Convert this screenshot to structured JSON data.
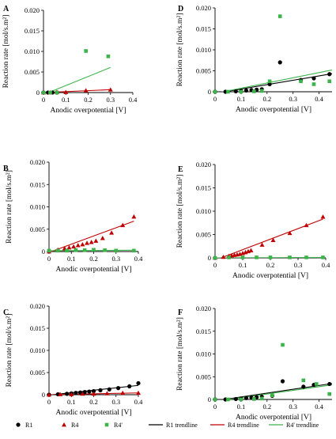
{
  "legend": {
    "items": [
      {
        "label": "R1",
        "marker": "circle",
        "color": "#000000"
      },
      {
        "label": "R4",
        "marker": "triangle",
        "color": "#c00000"
      },
      {
        "label": "R4'",
        "marker": "square",
        "color": "#3cb44b"
      },
      {
        "label": "R1 trendline",
        "marker": "line",
        "color": "#000000"
      },
      {
        "label": "R4 trendline",
        "marker": "line",
        "color": "#c00000"
      },
      {
        "label": "R4' trendline",
        "marker": "line",
        "color": "#3cb44b"
      }
    ]
  },
  "colors": {
    "R1": "#000000",
    "R4": "#c00000",
    "R4p": "#3cb44b"
  },
  "chart_data": [
    {
      "panel": "A",
      "type": "scatter",
      "xlabel": "Anodic overpotential [V]",
      "ylabel": "Reaction rate [mol/s.m²]",
      "xlim": [
        0,
        0.4
      ],
      "ylim": [
        0,
        0.02
      ],
      "xticks": [
        "0",
        "0.1",
        "0.2",
        "0.3",
        "0.4"
      ],
      "yticks": [
        "0",
        "0.005",
        "0.010",
        "0.015",
        "0.020"
      ],
      "series": [
        {
          "key": "R1",
          "points": [
            [
              0.0,
              0.0
            ],
            [
              0.02,
              0.0
            ],
            [
              0.04,
              0.0
            ],
            [
              0.06,
              0.0
            ]
          ]
        },
        {
          "key": "R4",
          "points": [
            [
              0.0,
              0.0
            ],
            [
              0.03,
              0.0
            ],
            [
              0.06,
              0.0001
            ],
            [
              0.1,
              0.0001
            ],
            [
              0.19,
              0.0005
            ],
            [
              0.3,
              0.0007
            ]
          ]
        },
        {
          "key": "R4p",
          "points": [
            [
              0.0,
              0.0
            ],
            [
              0.03,
              0.0
            ],
            [
              0.06,
              0.0
            ],
            [
              0.19,
              0.0101
            ],
            [
              0.29,
              0.0088
            ]
          ]
        }
      ],
      "trendlines": [
        {
          "key": "R4",
          "x": [
            0.0,
            0.3
          ],
          "y": [
            0.0,
            0.0007
          ]
        },
        {
          "key": "R4p",
          "x": [
            0.0,
            0.3
          ],
          "y": [
            -0.0005,
            0.0061
          ]
        }
      ]
    },
    {
      "panel": "B",
      "type": "scatter",
      "xlabel": "Anodic overpotential [V]",
      "ylabel": "Reaction rate [mol/s.m²]",
      "xlim": [
        0,
        0.4
      ],
      "ylim": [
        0,
        0.02
      ],
      "xticks": [
        "0",
        "0.1",
        "0.2",
        "0.3",
        "0.4"
      ],
      "yticks": [
        "0",
        "0.005",
        "0.010",
        "0.015",
        "0.020"
      ],
      "series": [
        {
          "key": "R4",
          "points": [
            [
              0.0,
              0.0
            ],
            [
              0.04,
              0.0004
            ],
            [
              0.07,
              0.0007
            ],
            [
              0.09,
              0.0009
            ],
            [
              0.11,
              0.0011
            ],
            [
              0.13,
              0.0014
            ],
            [
              0.15,
              0.0016
            ],
            [
              0.17,
              0.0019
            ],
            [
              0.19,
              0.0021
            ],
            [
              0.21,
              0.0024
            ],
            [
              0.24,
              0.003
            ],
            [
              0.28,
              0.0042
            ],
            [
              0.33,
              0.0059
            ],
            [
              0.38,
              0.0078
            ]
          ]
        },
        {
          "key": "R4p",
          "points": [
            [
              0.0,
              0.0002
            ],
            [
              0.04,
              0.0002
            ],
            [
              0.08,
              0.0002
            ],
            [
              0.12,
              0.0003
            ],
            [
              0.16,
              0.0003
            ],
            [
              0.2,
              0.0004
            ],
            [
              0.25,
              0.0003
            ],
            [
              0.3,
              0.0002
            ],
            [
              0.38,
              0.0002
            ]
          ]
        }
      ],
      "trendlines": [
        {
          "key": "R4",
          "x": [
            0.0,
            0.38
          ],
          "y": [
            -0.0002,
            0.0068
          ]
        },
        {
          "key": "R4p",
          "x": [
            0.0,
            0.38
          ],
          "y": [
            0.0002,
            0.0003
          ]
        }
      ]
    },
    {
      "panel": "C",
      "type": "scatter",
      "xlabel": "Anodic overpotential [V]",
      "ylabel": "Reaction rate [mol/s.m²]",
      "xlim": [
        0,
        0.4
      ],
      "ylim": [
        0,
        0.02
      ],
      "xticks": [
        "0",
        "0.1",
        "0.2",
        "0.3",
        "0.4"
      ],
      "yticks": [
        "0",
        "0.005",
        "0.010",
        "0.015",
        "0.020"
      ],
      "series": [
        {
          "key": "R1",
          "points": [
            [
              0.0,
              0.0
            ],
            [
              0.04,
              0.0001
            ],
            [
              0.08,
              0.0002
            ],
            [
              0.1,
              0.0003
            ],
            [
              0.12,
              0.0004
            ],
            [
              0.14,
              0.0005
            ],
            [
              0.16,
              0.0006
            ],
            [
              0.18,
              0.0007
            ],
            [
              0.2,
              0.0008
            ],
            [
              0.23,
              0.001
            ],
            [
              0.27,
              0.0012
            ],
            [
              0.31,
              0.0015
            ],
            [
              0.36,
              0.0019
            ],
            [
              0.4,
              0.0026
            ]
          ]
        },
        {
          "key": "R4",
          "points": [
            [
              0.0,
              0.0
            ],
            [
              0.05,
              0.0001
            ],
            [
              0.1,
              0.0001
            ],
            [
              0.15,
              0.0002
            ],
            [
              0.2,
              0.0002
            ],
            [
              0.26,
              0.0003
            ],
            [
              0.33,
              0.0004
            ],
            [
              0.4,
              0.0004
            ]
          ]
        }
      ],
      "trendlines": [
        {
          "key": "R1",
          "x": [
            0.0,
            0.4
          ],
          "y": [
            -0.0001,
            0.0021
          ]
        },
        {
          "key": "R4",
          "x": [
            0.0,
            0.4
          ],
          "y": [
            0.0,
            0.0004
          ]
        }
      ]
    },
    {
      "panel": "D",
      "type": "scatter",
      "xlabel": "Anodic overpotential [V]",
      "ylabel": "Reaction rate [mol/s.m²]",
      "xlim": [
        0,
        0.45
      ],
      "ylim": [
        0,
        0.02
      ],
      "xticks": [
        "0",
        "0.1",
        "0.2",
        "0.3",
        "0.4"
      ],
      "yticks": [
        "0",
        "0.005",
        "0.010",
        "0.015",
        "0.020"
      ],
      "series": [
        {
          "key": "R1",
          "points": [
            [
              0.0,
              0.0
            ],
            [
              0.04,
              0.0
            ],
            [
              0.08,
              0.0001
            ],
            [
              0.1,
              0.0002
            ],
            [
              0.12,
              0.0003
            ],
            [
              0.14,
              0.0004
            ],
            [
              0.16,
              0.0005
            ],
            [
              0.18,
              0.0006
            ],
            [
              0.21,
              0.0018
            ],
            [
              0.25,
              0.007
            ],
            [
              0.33,
              0.0028
            ],
            [
              0.38,
              0.0032
            ],
            [
              0.44,
              0.0042
            ]
          ]
        },
        {
          "key": "R4p",
          "points": [
            [
              0.0,
              0.0
            ],
            [
              0.05,
              0.0
            ],
            [
              0.1,
              0.0
            ],
            [
              0.15,
              0.0001
            ],
            [
              0.18,
              0.0002
            ],
            [
              0.21,
              0.0025
            ],
            [
              0.25,
              0.018
            ],
            [
              0.33,
              0.0025
            ],
            [
              0.38,
              0.0018
            ],
            [
              0.44,
              0.0025
            ]
          ]
        }
      ],
      "trendlines": [
        {
          "key": "R1",
          "x": [
            0.0,
            0.45
          ],
          "y": [
            -0.0004,
            0.0043
          ]
        },
        {
          "key": "R4p",
          "x": [
            0.0,
            0.45
          ],
          "y": [
            -0.0004,
            0.0052
          ]
        }
      ]
    },
    {
      "panel": "E",
      "type": "scatter",
      "xlabel": "Anodic overpotential [V]",
      "ylabel": "Reaction rate [mol/s.m²]",
      "xlim": [
        0,
        0.4
      ],
      "ylim": [
        0,
        0.02
      ],
      "xticks": [
        "0",
        "0.1",
        "0.2",
        "0.3",
        "0.4"
      ],
      "yticks": [
        "0",
        "0.005",
        "0.010",
        "0.015",
        "0.020"
      ],
      "series": [
        {
          "key": "R4",
          "points": [
            [
              0.0,
              0.0
            ],
            [
              0.03,
              0.0002
            ],
            [
              0.05,
              0.0004
            ],
            [
              0.06,
              0.0005
            ],
            [
              0.07,
              0.0006
            ],
            [
              0.08,
              0.0007
            ],
            [
              0.09,
              0.0008
            ],
            [
              0.1,
              0.001
            ],
            [
              0.11,
              0.0012
            ],
            [
              0.12,
              0.0014
            ],
            [
              0.13,
              0.0016
            ],
            [
              0.17,
              0.0028
            ],
            [
              0.21,
              0.0038
            ],
            [
              0.27,
              0.0053
            ],
            [
              0.33,
              0.007
            ],
            [
              0.39,
              0.0088
            ]
          ]
        },
        {
          "key": "R4p",
          "points": [
            [
              0.0,
              0.0
            ],
            [
              0.05,
              0.0001
            ],
            [
              0.1,
              0.0001
            ],
            [
              0.15,
              0.0001
            ],
            [
              0.2,
              0.0001
            ],
            [
              0.27,
              0.0001
            ],
            [
              0.33,
              0.0001
            ],
            [
              0.39,
              0.0001
            ]
          ]
        }
      ],
      "trendlines": [
        {
          "key": "R4",
          "x": [
            0.0,
            0.39
          ],
          "y": [
            -0.0005,
            0.0083
          ]
        },
        {
          "key": "R4p",
          "x": [
            0.0,
            0.39
          ],
          "y": [
            0.0,
            0.0001
          ]
        }
      ]
    },
    {
      "panel": "F",
      "type": "scatter",
      "xlabel": "Anodic overpotential [V]",
      "ylabel": "Reaction rate [mol/s.m²]",
      "xlim": [
        0,
        0.45
      ],
      "ylim": [
        0,
        0.02
      ],
      "xticks": [
        "0",
        "0.1",
        "0.2",
        "0.3",
        "0.4"
      ],
      "yticks": [
        "0",
        "0.005",
        "0.010",
        "0.015",
        "0.020"
      ],
      "series": [
        {
          "key": "R1",
          "points": [
            [
              0.0,
              0.0
            ],
            [
              0.04,
              0.0
            ],
            [
              0.08,
              0.0001
            ],
            [
              0.1,
              0.0002
            ],
            [
              0.12,
              0.0003
            ],
            [
              0.14,
              0.0004
            ],
            [
              0.16,
              0.0005
            ],
            [
              0.18,
              0.0006
            ],
            [
              0.22,
              0.0008
            ],
            [
              0.26,
              0.004
            ],
            [
              0.34,
              0.0028
            ],
            [
              0.38,
              0.0032
            ],
            [
              0.44,
              0.0034
            ]
          ]
        },
        {
          "key": "R4p",
          "points": [
            [
              0.0,
              0.0
            ],
            [
              0.05,
              0.0
            ],
            [
              0.1,
              0.0
            ],
            [
              0.15,
              0.0001
            ],
            [
              0.18,
              0.0002
            ],
            [
              0.22,
              0.0009
            ],
            [
              0.26,
              0.012
            ],
            [
              0.34,
              0.0042
            ],
            [
              0.39,
              0.0034
            ],
            [
              0.44,
              0.0012
            ]
          ]
        }
      ],
      "trendlines": [
        {
          "key": "R1",
          "x": [
            0.0,
            0.45
          ],
          "y": [
            -0.0003,
            0.0035
          ]
        },
        {
          "key": "R4p",
          "x": [
            0.0,
            0.45
          ],
          "y": [
            -0.0004,
            0.0032
          ]
        }
      ]
    }
  ]
}
